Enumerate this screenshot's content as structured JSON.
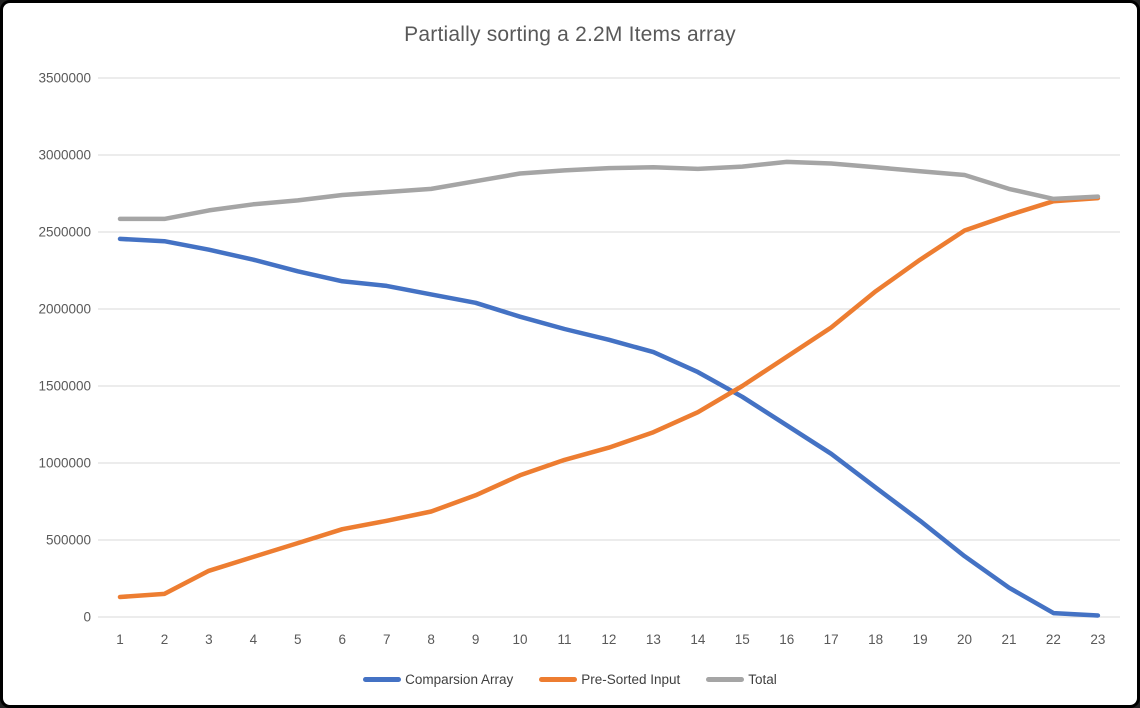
{
  "colors": {
    "background": "#FFFFFF",
    "frame_border": "#000000",
    "gridline": "#D9D9D9",
    "axis_text": "#595959",
    "title_text": "#595959",
    "legend_text": "#404040",
    "series_blue": "#4472C4",
    "series_orange": "#ED7D31",
    "series_gray": "#A5A5A5"
  },
  "chart_data": {
    "type": "line",
    "title": "Partially sorting a 2.2M Items array",
    "xlabel": "",
    "ylabel": "",
    "grid": true,
    "legend_position": "bottom",
    "ylim": [
      0,
      3500000
    ],
    "y_tick_step": 500000,
    "y_tick_labels": [
      "0",
      "500000",
      "1000000",
      "1500000",
      "2000000",
      "2500000",
      "3000000",
      "3500000"
    ],
    "categories": [
      1,
      2,
      3,
      4,
      5,
      6,
      7,
      8,
      9,
      10,
      11,
      12,
      13,
      14,
      15,
      16,
      17,
      18,
      19,
      20,
      21,
      22,
      23
    ],
    "series": [
      {
        "name": "Comparsion Array",
        "color": "#4472C4",
        "values": [
          2455000,
          2440000,
          2385000,
          2320000,
          2245000,
          2180000,
          2150000,
          2095000,
          2040000,
          1950000,
          1870000,
          1800000,
          1720000,
          1590000,
          1430000,
          1245000,
          1060000,
          840000,
          625000,
          395000,
          190000,
          25000,
          10000
        ]
      },
      {
        "name": "Pre-Sorted Input",
        "color": "#ED7D31",
        "values": [
          130000,
          150000,
          300000,
          390000,
          480000,
          570000,
          625000,
          685000,
          790000,
          920000,
          1020000,
          1100000,
          1200000,
          1330000,
          1500000,
          1690000,
          1880000,
          2115000,
          2320000,
          2510000,
          2610000,
          2700000,
          2720000
        ]
      },
      {
        "name": "Total",
        "color": "#A5A5A5",
        "values": [
          2585000,
          2585000,
          2640000,
          2680000,
          2705000,
          2740000,
          2760000,
          2780000,
          2830000,
          2880000,
          2900000,
          2915000,
          2920000,
          2910000,
          2925000,
          2955000,
          2945000,
          2920000,
          2895000,
          2870000,
          2780000,
          2715000,
          2730000
        ]
      }
    ]
  }
}
